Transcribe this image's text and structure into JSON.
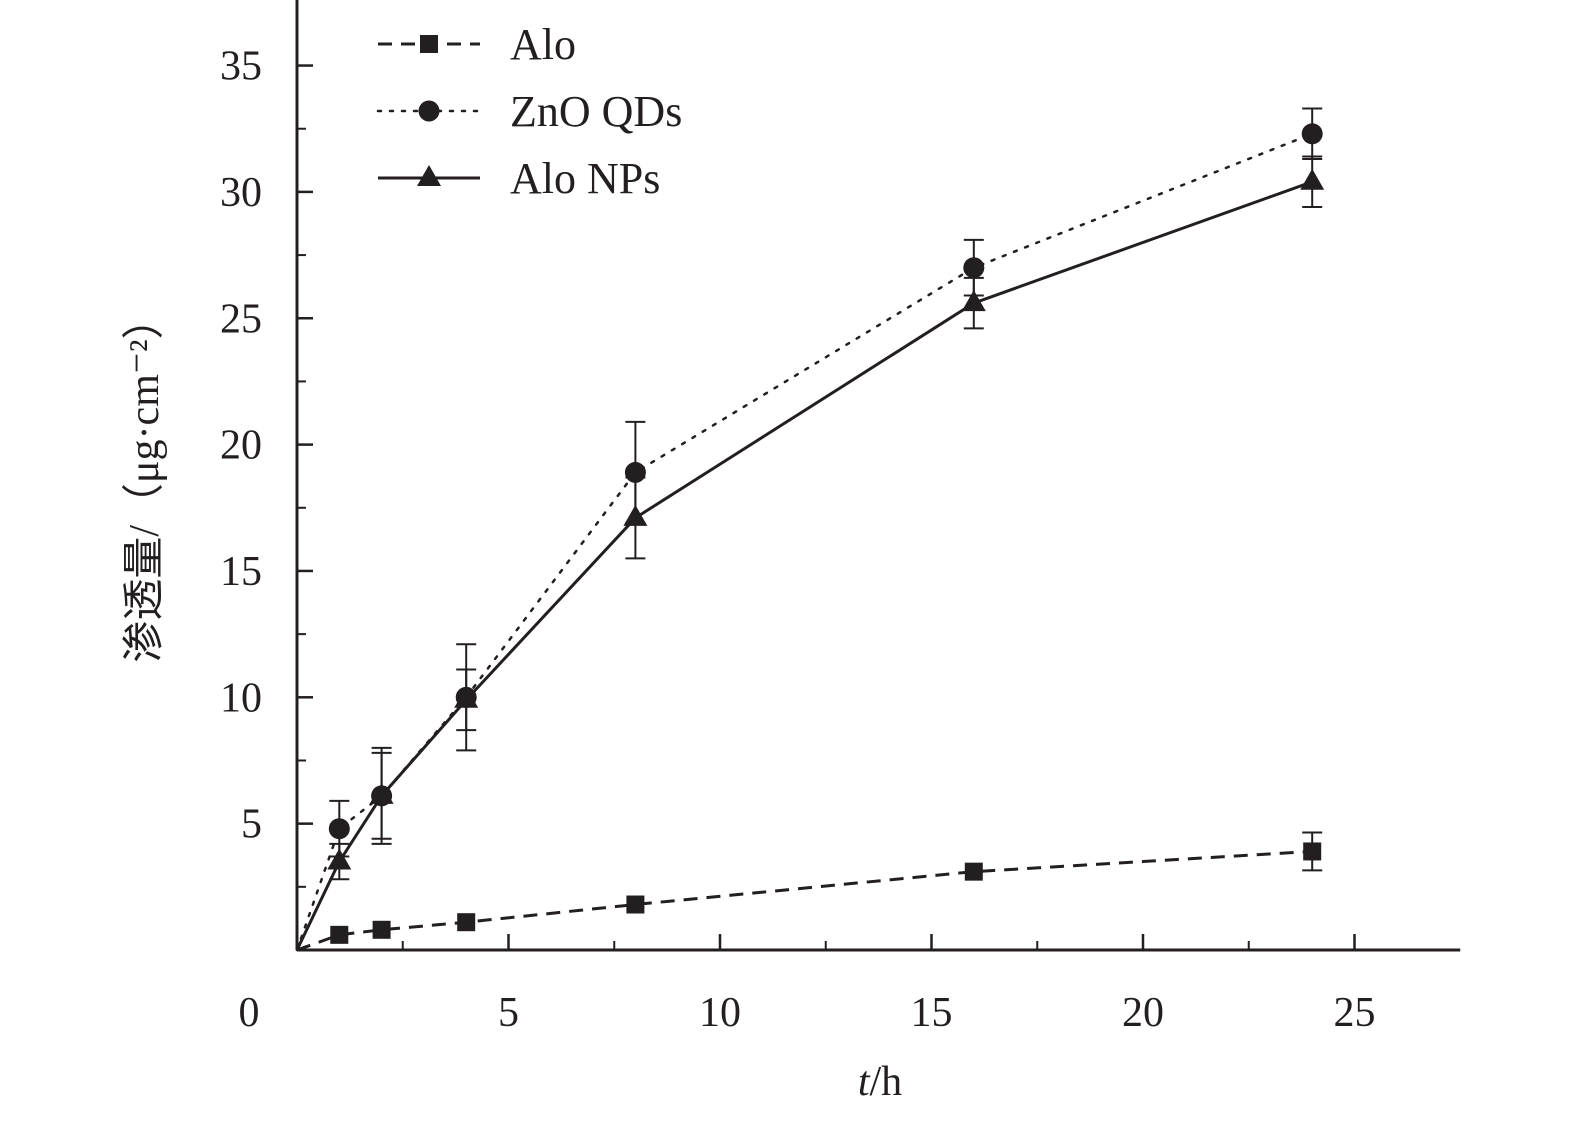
{
  "chart_data": {
    "type": "line",
    "xlabel_var": "t",
    "xlabel_unit": "/h",
    "ylabel": "渗透量/（μg·cm⁻²）",
    "xlim": [
      0,
      27.5
    ],
    "ylim": [
      0,
      37.6
    ],
    "x_ticks": [
      0,
      5,
      10,
      15,
      20,
      25
    ],
    "y_ticks": [
      5,
      10,
      15,
      20,
      25,
      30,
      35
    ],
    "x_minor_ticks": [
      2.5,
      7.5,
      12.5,
      17.5,
      22.5
    ],
    "y_minor_ticks": [
      2.5,
      7.5,
      12.5,
      17.5,
      22.5,
      27.5,
      32.5
    ],
    "grid": false,
    "legend_position": "top-left",
    "series": [
      {
        "name": "Alo",
        "marker": "square",
        "line_style": "dashed",
        "x": [
          0,
          1,
          2,
          4,
          8,
          16,
          24
        ],
        "y": [
          0,
          0.6,
          0.8,
          1.1,
          1.8,
          3.1,
          3.9
        ],
        "err": [
          0,
          0,
          0,
          0,
          0,
          0,
          0.75
        ],
        "color": "#231f20"
      },
      {
        "name": "ZnO QDs",
        "marker": "circle",
        "line_style": "dotted",
        "x": [
          0,
          1,
          2,
          4,
          8,
          16,
          24
        ],
        "y": [
          0,
          4.8,
          6.1,
          10,
          18.9,
          27,
          32.3
        ],
        "err": [
          0,
          1.1,
          1.9,
          2.1,
          2.0,
          1.1,
          1.0
        ],
        "color": "#231f20"
      },
      {
        "name": "Alo NPs",
        "marker": "triangle",
        "line_style": "solid",
        "x": [
          0,
          1,
          2,
          4,
          8,
          16,
          24
        ],
        "y": [
          0,
          3.5,
          6.1,
          9.9,
          17.1,
          25.6,
          30.4
        ],
        "err": [
          0,
          0.7,
          1.7,
          1.2,
          1.6,
          1.0,
          1.0
        ],
        "color": "#231f20"
      }
    ]
  }
}
